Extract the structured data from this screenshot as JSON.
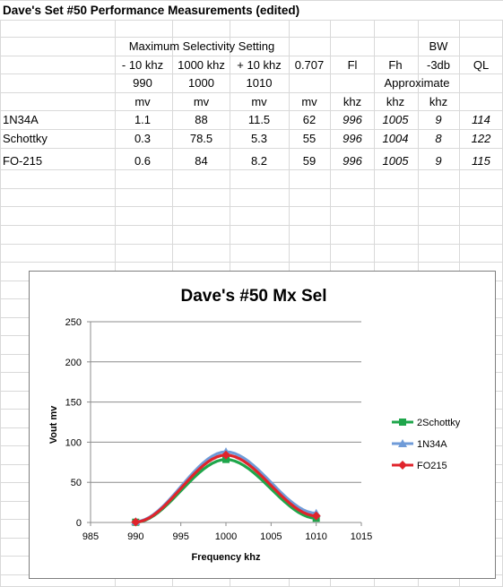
{
  "sheet_title": "Dave's Set #50 Performance Measurements (edited)",
  "header": {
    "group_label": "Maximum Selectivity Setting",
    "bw_label": "BW",
    "approx_label": "Approximate",
    "columns": [
      "- 10 khz",
      "1000 khz",
      "+ 10 khz",
      "0.707",
      "Fl",
      "Fh",
      "-3db",
      "QL"
    ],
    "freqs": [
      "990",
      "1000",
      "1010"
    ],
    "units": [
      "mv",
      "mv",
      "mv",
      "mv",
      "khz",
      "khz",
      "khz"
    ]
  },
  "rows": [
    {
      "name": "1N34A",
      "v990": "1.1",
      "v1000": "88",
      "v1010": "11.5",
      "v707": "62",
      "fl": "996",
      "fh": "1005",
      "bw": "9",
      "ql": "114"
    },
    {
      "name": "Schottky",
      "v990": "0.3",
      "v1000": "78.5",
      "v1010": "5.3",
      "v707": "55",
      "fl": "996",
      "fh": "1004",
      "bw": "8",
      "ql": "122"
    },
    {
      "name": "FO-215",
      "v990": "0.6",
      "v1000": "84",
      "v1010": "8.2",
      "v707": "59",
      "fl": "996",
      "fh": "1005",
      "bw": "9",
      "ql": "115"
    }
  ],
  "chart_data": {
    "type": "line",
    "title": "Dave's #50 Mx Sel",
    "xlabel": "Frequency khz",
    "ylabel": "Vout mv",
    "xlim": [
      985,
      1015
    ],
    "ylim": [
      0,
      250
    ],
    "xticks": [
      985,
      990,
      995,
      1000,
      1005,
      1010,
      1015
    ],
    "yticks": [
      0,
      50,
      100,
      150,
      200,
      250
    ],
    "grid": "horizontal",
    "legend": "right",
    "series": [
      {
        "name": "2Schottky",
        "color": "#1fa64b",
        "marker": "square",
        "x": [
          990,
          1000,
          1010
        ],
        "y": [
          0.3,
          78.5,
          5.3
        ]
      },
      {
        "name": "1N34A",
        "color": "#6f9bd8",
        "marker": "triangle",
        "x": [
          990,
          1000,
          1010
        ],
        "y": [
          1.1,
          88,
          11.5
        ]
      },
      {
        "name": "FO215",
        "color": "#e0242c",
        "marker": "diamond",
        "x": [
          990,
          1000,
          1010
        ],
        "y": [
          0.6,
          84,
          8.2
        ]
      }
    ]
  }
}
